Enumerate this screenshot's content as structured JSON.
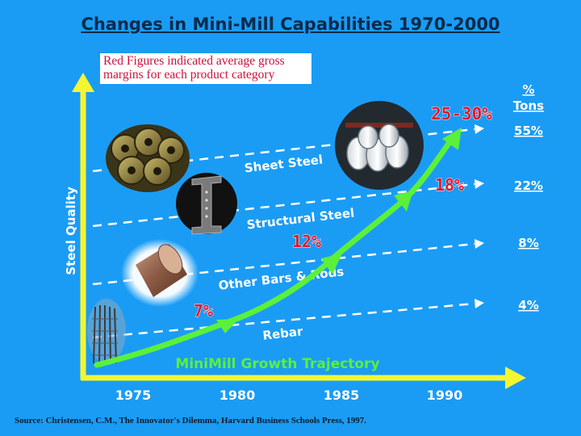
{
  "title": "Changes in Mini-Mill Capabilities 1970-2000",
  "note": "Red Figures indicated average gross margins for each product category",
  "y_axis_label": "Steel Quality",
  "x_axis_ticks": [
    "1975",
    "1980",
    "1985",
    "1990"
  ],
  "pct_tons_header": [
    "%",
    "Tons"
  ],
  "categories": [
    {
      "label": "Sheet Steel",
      "pct_tons": "55%"
    },
    {
      "label": "Structural Steel",
      "pct_tons": "22%"
    },
    {
      "label": "Other Bars & Rods",
      "pct_tons": "8%"
    },
    {
      "label": "Rebar",
      "pct_tons": "4%"
    }
  ],
  "margins": [
    "7%",
    "12%",
    "18%",
    "25-30%"
  ],
  "trajectory_label": "MiniMill Growth Trajectory",
  "source": "Source: Christensen, C.M., The Innovator's Dilemma,  Harvard Business Schools Press, 1997.",
  "colors": {
    "background": "#1a9cf5",
    "axis": "#f5f532",
    "trajectory": "#5cf03a",
    "margin_text": "#e3152b",
    "title": "#0a2a4a"
  }
}
